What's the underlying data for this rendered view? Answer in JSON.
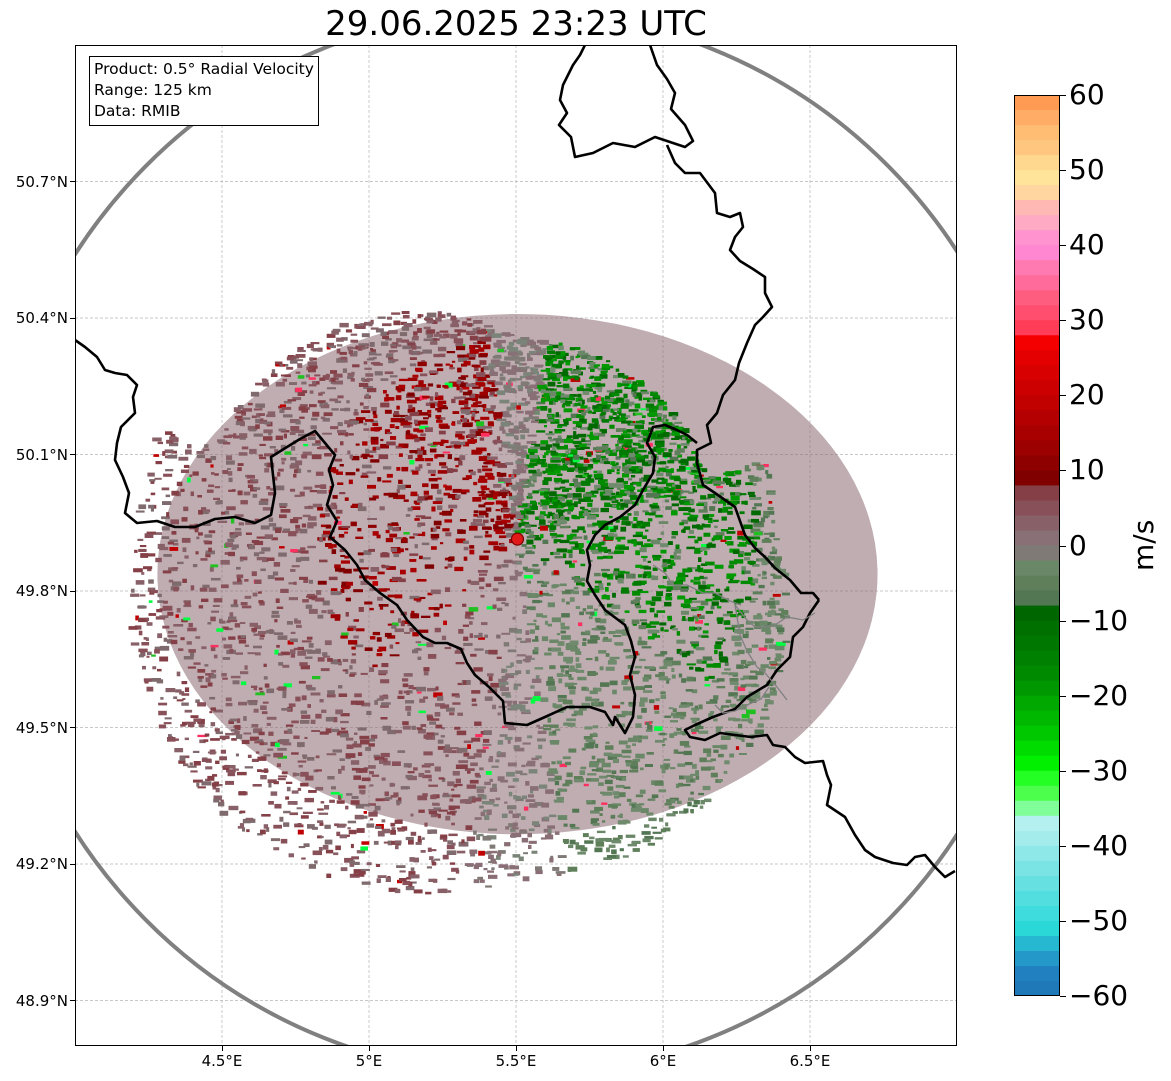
{
  "title": "29.06.2025 23:23 UTC",
  "info": {
    "product": "Product: 0.5° Radial Velocity",
    "range": "Range: 125 km",
    "data": "Data: RMIB"
  },
  "map": {
    "lon_range": [
      4.0,
      7.0
    ],
    "lat_range": [
      48.8,
      51.0
    ],
    "x_ticks": [
      {
        "value": 4.5,
        "label": "4.5°E"
      },
      {
        "value": 5.0,
        "label": "5°E"
      },
      {
        "value": 5.5,
        "label": "5.5°E"
      },
      {
        "value": 6.0,
        "label": "6°E"
      },
      {
        "value": 6.5,
        "label": "6.5°E"
      }
    ],
    "y_ticks": [
      {
        "value": 50.7,
        "label": "50.7°N"
      },
      {
        "value": 50.4,
        "label": "50.4°N"
      },
      {
        "value": 50.1,
        "label": "50.1°N"
      },
      {
        "value": 49.8,
        "label": "49.8°N"
      },
      {
        "value": 49.5,
        "label": "49.5°N"
      },
      {
        "value": 49.2,
        "label": "49.2°N"
      },
      {
        "value": 48.9,
        "label": "48.9°N"
      }
    ],
    "radar_site": {
      "lon": 5.505,
      "lat": 49.914
    },
    "range_ring_color": "#808080",
    "border_color": "#000000",
    "minor_border_color": "#808080"
  },
  "colorbar": {
    "unit": "m/s",
    "min": -60,
    "max": 60,
    "ticks": [
      {
        "value": 60,
        "label": "60"
      },
      {
        "value": 50,
        "label": "50"
      },
      {
        "value": 40,
        "label": "40"
      },
      {
        "value": 30,
        "label": "30"
      },
      {
        "value": 20,
        "label": "20"
      },
      {
        "value": 10,
        "label": "10"
      },
      {
        "value": 0,
        "label": "0"
      },
      {
        "value": -10,
        "label": "−10"
      },
      {
        "value": -20,
        "label": "−20"
      },
      {
        "value": -30,
        "label": "−30"
      },
      {
        "value": -40,
        "label": "−40"
      },
      {
        "value": -50,
        "label": "−50"
      },
      {
        "value": -60,
        "label": "−60"
      }
    ],
    "colors_top_to_bottom": [
      "#ff9b52",
      "#ffad66",
      "#ffbd73",
      "#ffc680",
      "#ffd88f",
      "#ffe49a",
      "#ffd5a0",
      "#ffb8b3",
      "#ffaac4",
      "#ff93cf",
      "#ff86d1",
      "#ff7ab0",
      "#ff6b9a",
      "#ff5d80",
      "#ff4e6e",
      "#ff3d58",
      "#f40000",
      "#e40000",
      "#d80000",
      "#cc0000",
      "#c10000",
      "#b40000",
      "#a80000",
      "#9c0000",
      "#8e0000",
      "#800000",
      "#844046",
      "#885058",
      "#886068",
      "#887076",
      "#807a76",
      "#6a8868",
      "#5f7f5b",
      "#537653",
      "#006600",
      "#007000",
      "#007800",
      "#008000",
      "#008a00",
      "#009800",
      "#00a800",
      "#00b800",
      "#00c800",
      "#00dc00",
      "#00f000",
      "#24ff24",
      "#4dff4d",
      "#80ff99",
      "#b5f0f0",
      "#a4ecec",
      "#8ee8e8",
      "#7ae4e4",
      "#66e0e0",
      "#52dede",
      "#3edcdc",
      "#2ad8d8",
      "#26b8d0",
      "#2498c8",
      "#2080c0",
      "#1f78b8"
    ]
  }
}
